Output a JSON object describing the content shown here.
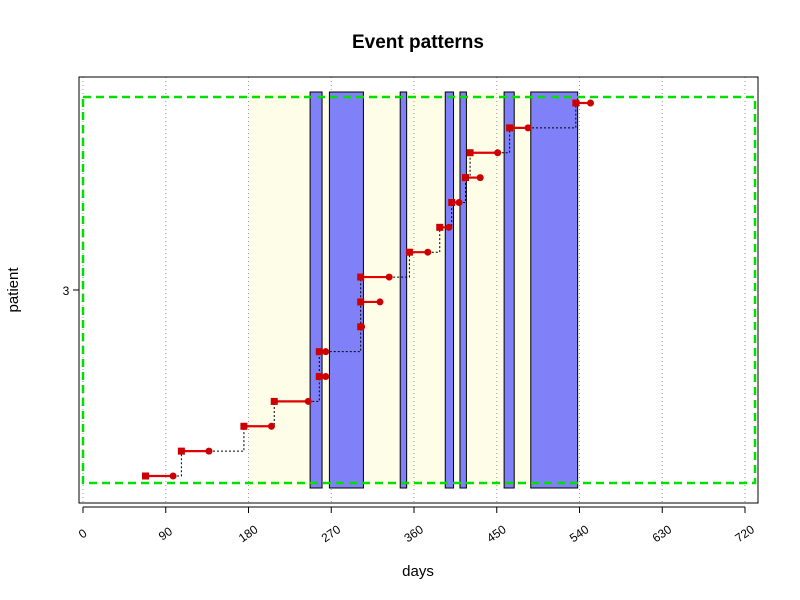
{
  "chart_data": {
    "type": "event-timeline",
    "title": "Event patterns",
    "xlabel": "days",
    "ylabel": "patient",
    "y_category": "3",
    "xlim": [
      0,
      720
    ],
    "x_ticks": [
      0,
      90,
      180,
      270,
      360,
      450,
      540,
      630,
      720
    ],
    "x_tick_labels": [
      "0",
      "90",
      "180",
      "270",
      "360",
      "450",
      "540",
      "630",
      "720"
    ],
    "grid": "vertical-dotted",
    "follow_up_window": [
      0,
      720
    ],
    "background_window": [
      180,
      540
    ],
    "exposure_intervals": [
      [
        247,
        260
      ],
      [
        268,
        305
      ],
      [
        345,
        352
      ],
      [
        394,
        403
      ],
      [
        410,
        417
      ],
      [
        458,
        469
      ],
      [
        487,
        538
      ]
    ],
    "events": [
      {
        "start": 68,
        "end": 98
      },
      {
        "start": 107,
        "end": 137
      },
      {
        "start": 175,
        "end": 205
      },
      {
        "start": 208,
        "end": 245
      },
      {
        "start": 257,
        "end": 264
      },
      {
        "start": 257,
        "end": 264
      },
      {
        "start": 302,
        "end": 303
      },
      {
        "start": 302,
        "end": 323
      },
      {
        "start": 302,
        "end": 333
      },
      {
        "start": 355,
        "end": 375
      },
      {
        "start": 388,
        "end": 398
      },
      {
        "start": 401,
        "end": 409
      },
      {
        "start": 416,
        "end": 432
      },
      {
        "start": 421,
        "end": 451
      },
      {
        "start": 464,
        "end": 484
      },
      {
        "start": 536,
        "end": 552
      }
    ],
    "colors": {
      "exposure_fill": "#8080f8",
      "background_fill": "#fdfde8",
      "follow_up_border": "#00e000",
      "event_line": "#e00000",
      "event_start_marker": "#cc0000",
      "event_end_marker": "#cc0000",
      "connector": "#000000",
      "grid": "#999999"
    }
  }
}
